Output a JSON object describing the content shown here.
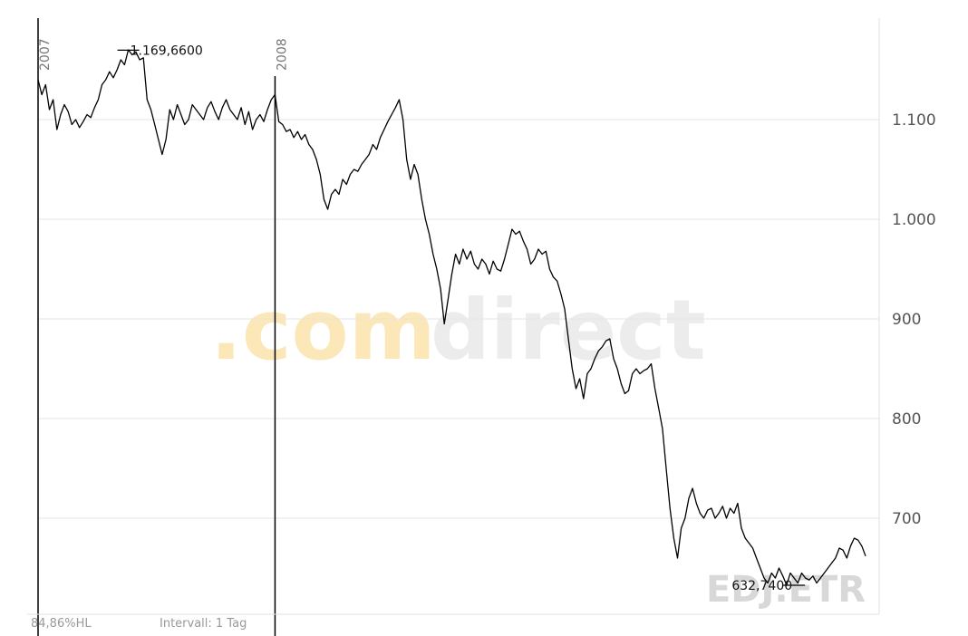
{
  "chart_data": {
    "type": "line",
    "ylim": [
      600,
      1190
    ],
    "grid": true,
    "y_ticks": [
      {
        "value": 700,
        "label": "700"
      },
      {
        "value": 800,
        "label": "800"
      },
      {
        "value": 900,
        "label": "900"
      },
      {
        "value": 1000,
        "label": "1.000"
      },
      {
        "value": 1100,
        "label": "1.100"
      }
    ],
    "year_markers": [
      {
        "label": "2007",
        "index": 0
      },
      {
        "label": "2008",
        "index": 63
      }
    ],
    "series": [
      {
        "values": [
          1140,
          1125,
          1135,
          1110,
          1120,
          1090,
          1105,
          1115,
          1108,
          1095,
          1100,
          1092,
          1098,
          1105,
          1102,
          1112,
          1120,
          1135,
          1140,
          1148,
          1142,
          1150,
          1160,
          1155,
          1170,
          1165,
          1168,
          1160,
          1162,
          1120,
          1110,
          1095,
          1080,
          1065,
          1080,
          1110,
          1100,
          1115,
          1105,
          1095,
          1100,
          1115,
          1110,
          1105,
          1100,
          1112,
          1118,
          1108,
          1100,
          1112,
          1120,
          1110,
          1105,
          1100,
          1112,
          1095,
          1108,
          1090,
          1100,
          1105,
          1098,
          1110,
          1120,
          1125,
          1098,
          1095,
          1088,
          1090,
          1082,
          1088,
          1080,
          1085,
          1075,
          1070,
          1060,
          1045,
          1020,
          1010,
          1025,
          1030,
          1025,
          1040,
          1035,
          1045,
          1050,
          1048,
          1055,
          1060,
          1065,
          1075,
          1070,
          1082,
          1090,
          1098,
          1105,
          1112,
          1120,
          1100,
          1060,
          1040,
          1055,
          1045,
          1020,
          1000,
          985,
          965,
          950,
          930,
          895,
          920,
          945,
          965,
          955,
          970,
          960,
          968,
          955,
          950,
          960,
          955,
          945,
          958,
          950,
          948,
          960,
          975,
          990,
          985,
          988,
          978,
          970,
          955,
          960,
          970,
          965,
          968,
          950,
          942,
          938,
          925,
          910,
          880,
          850,
          830,
          840,
          820,
          845,
          850,
          860,
          868,
          872,
          878,
          880,
          860,
          850,
          835,
          825,
          828,
          845,
          850,
          845,
          848,
          850,
          855,
          830,
          810,
          790,
          750,
          710,
          680,
          660,
          690,
          700,
          720,
          730,
          715,
          705,
          700,
          708,
          710,
          700,
          705,
          712,
          700,
          710,
          705,
          715,
          690,
          680,
          675,
          670,
          660,
          650,
          640,
          635,
          645,
          640,
          650,
          642,
          633,
          645,
          640,
          635,
          645,
          640,
          638,
          642,
          635,
          640,
          645,
          650,
          655,
          660,
          670,
          668,
          660,
          672,
          680,
          678,
          672,
          662
        ]
      }
    ],
    "annotations": [
      {
        "text": "1.169,6600",
        "index": 24,
        "value": 1169.66
      },
      {
        "text": "632,7400",
        "index": 201,
        "value": 632.74
      }
    ],
    "watermark_left": ".com",
    "watermark_right": "direct",
    "symbol": "EDJ.ETR",
    "footer_left": "84,86%HL",
    "footer_right": "Intervall: 1 Tag"
  }
}
